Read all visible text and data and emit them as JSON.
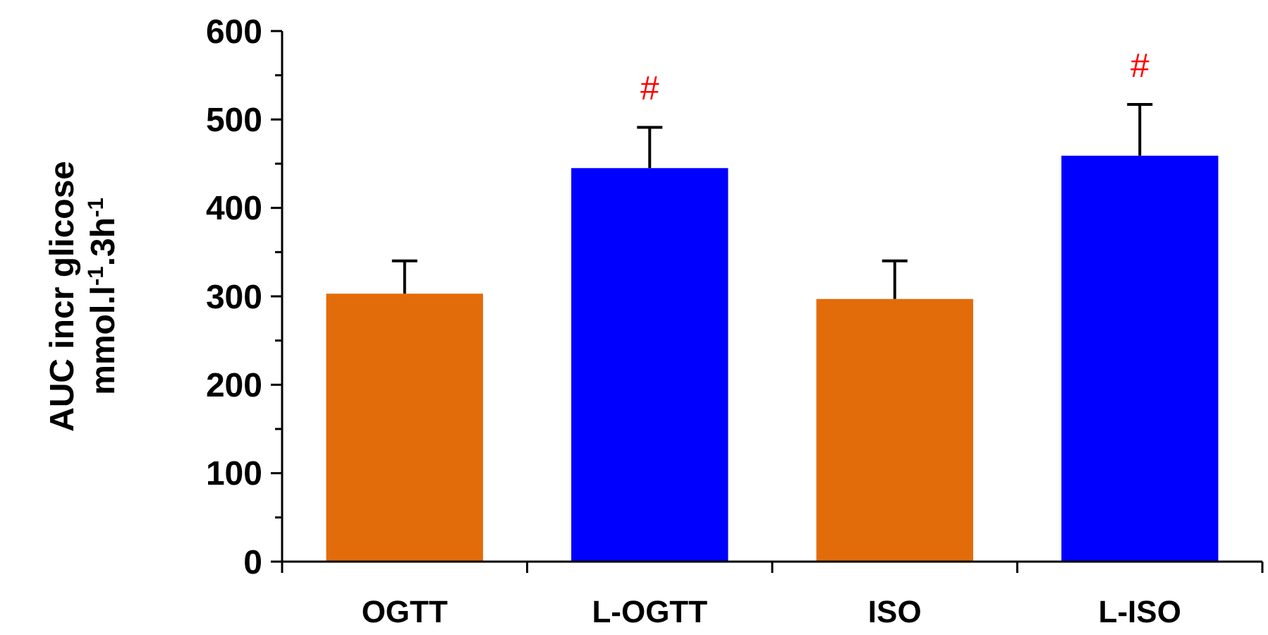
{
  "chart_data": {
    "type": "bar",
    "ylabel": "AUC incr glicose\nmmol.l$^{-1}$.3h$^{-1}$",
    "categories": [
      "OGTT",
      "L-OGTT",
      "ISO",
      "L-ISO"
    ],
    "values": [
      303,
      445,
      297,
      459
    ],
    "colors": [
      "#e36c0a",
      "#0000ff",
      "#e36c0a",
      "#0000ff"
    ],
    "errors": [
      [
        303,
        340
      ],
      [
        445,
        491
      ],
      [
        297,
        340
      ],
      [
        459,
        517
      ]
    ],
    "ylim": [
      0,
      600
    ],
    "yticks": [
      0,
      {
        "value": 50,
        "label": null
      },
      100,
      {
        "value": 150,
        "label": null
      },
      200,
      {
        "value": 250,
        "label": null
      },
      300,
      {
        "value": 350,
        "label": null
      },
      400,
      {
        "value": 450,
        "label": null
      },
      500,
      {
        "value": 550,
        "label": null
      },
      600
    ],
    "annotations": [
      {
        "text": "#",
        "x": "L-OGTT",
        "y": 491
      },
      {
        "text": "#",
        "x": "L-ISO",
        "y": 517
      }
    ],
    "grid": false
  }
}
